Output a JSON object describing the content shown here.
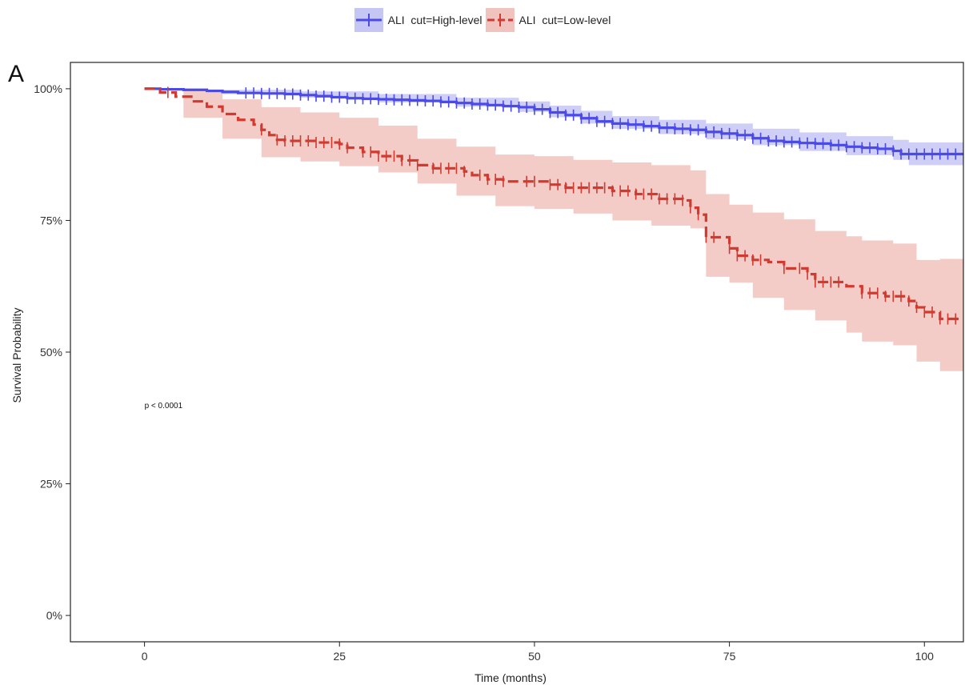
{
  "panel_letter": "A",
  "chart_data": {
    "type": "line",
    "subtype": "kaplan-meier",
    "title": "",
    "xlabel": "Time (months)",
    "ylabel": "Survival Probability",
    "xlim": [
      -9.5,
      105
    ],
    "ylim": [
      -0.05,
      1.05
    ],
    "x_ticks": [
      0,
      25,
      50,
      75,
      100
    ],
    "x_tick_labels": [
      "0",
      "25",
      "50",
      "75",
      "100"
    ],
    "y_ticks": [
      0,
      0.25,
      0.5,
      0.75,
      1.0
    ],
    "y_tick_labels": [
      "0%",
      "25%",
      "50%",
      "75%",
      "100%"
    ],
    "grid": false,
    "legend_position": "top",
    "annotation": "p < 0.0001",
    "annotation_x": 0,
    "annotation_y": 0.4,
    "series": [
      {
        "name": "ALI  cut=High-level",
        "color": "#4a4ae8",
        "band_color": "#c6c6f5",
        "line_style": "solid",
        "steps": [
          [
            0,
            1.0
          ],
          [
            2,
            0.999
          ],
          [
            5,
            0.998
          ],
          [
            8,
            0.996
          ],
          [
            10,
            0.994
          ],
          [
            12,
            0.992
          ],
          [
            15,
            0.991
          ],
          [
            18,
            0.99
          ],
          [
            20,
            0.988
          ],
          [
            22,
            0.986
          ],
          [
            24,
            0.984
          ],
          [
            26,
            0.982
          ],
          [
            28,
            0.981
          ],
          [
            30,
            0.98
          ],
          [
            32,
            0.979
          ],
          [
            34,
            0.978
          ],
          [
            36,
            0.977
          ],
          [
            38,
            0.975
          ],
          [
            40,
            0.973
          ],
          [
            42,
            0.971
          ],
          [
            44,
            0.969
          ],
          [
            46,
            0.967
          ],
          [
            48,
            0.965
          ],
          [
            50,
            0.961
          ],
          [
            52,
            0.955
          ],
          [
            54,
            0.95
          ],
          [
            56,
            0.944
          ],
          [
            58,
            0.938
          ],
          [
            60,
            0.934
          ],
          [
            62,
            0.932
          ],
          [
            64,
            0.929
          ],
          [
            66,
            0.926
          ],
          [
            68,
            0.924
          ],
          [
            70,
            0.922
          ],
          [
            72,
            0.918
          ],
          [
            74,
            0.915
          ],
          [
            76,
            0.912
          ],
          [
            78,
            0.906
          ],
          [
            80,
            0.901
          ],
          [
            82,
            0.899
          ],
          [
            84,
            0.897
          ],
          [
            86,
            0.896
          ],
          [
            88,
            0.893
          ],
          [
            90,
            0.89
          ],
          [
            92,
            0.888
          ],
          [
            94,
            0.886
          ],
          [
            96,
            0.882
          ],
          [
            97,
            0.876
          ],
          [
            105,
            0.876
          ]
        ],
        "lower": [
          [
            0,
            1.0
          ],
          [
            10,
            0.99
          ],
          [
            20,
            0.983
          ],
          [
            30,
            0.974
          ],
          [
            40,
            0.966
          ],
          [
            48,
            0.956
          ],
          [
            52,
            0.946
          ],
          [
            56,
            0.934
          ],
          [
            60,
            0.924
          ],
          [
            66,
            0.914
          ],
          [
            72,
            0.904
          ],
          [
            78,
            0.893
          ],
          [
            84,
            0.882
          ],
          [
            90,
            0.874
          ],
          [
            96,
            0.865
          ],
          [
            98,
            0.855
          ],
          [
            105,
            0.855
          ]
        ],
        "upper": [
          [
            0,
            1.0
          ],
          [
            10,
            0.998
          ],
          [
            20,
            0.995
          ],
          [
            30,
            0.99
          ],
          [
            40,
            0.983
          ],
          [
            48,
            0.976
          ],
          [
            52,
            0.968
          ],
          [
            56,
            0.958
          ],
          [
            60,
            0.948
          ],
          [
            66,
            0.941
          ],
          [
            72,
            0.934
          ],
          [
            78,
            0.924
          ],
          [
            84,
            0.917
          ],
          [
            90,
            0.91
          ],
          [
            96,
            0.903
          ],
          [
            98,
            0.898
          ],
          [
            105,
            0.898
          ]
        ],
        "censors": [
          13,
          14,
          15,
          16,
          17,
          18,
          19,
          20,
          21,
          22,
          23,
          24,
          25,
          26,
          27,
          28,
          29,
          30,
          31,
          32,
          33,
          34,
          35,
          36,
          37,
          38,
          39,
          40,
          41,
          42,
          43,
          44,
          45,
          46,
          47,
          48,
          49,
          50,
          51,
          52,
          53,
          54,
          55,
          56,
          57,
          58,
          59,
          60,
          61,
          62,
          63,
          64,
          65,
          66,
          67,
          68,
          69,
          70,
          71,
          72,
          73,
          74,
          75,
          76,
          77,
          78,
          79,
          80,
          81,
          82,
          83,
          84,
          85,
          86,
          87,
          88,
          89,
          90,
          91,
          92,
          93,
          94,
          95,
          96,
          97,
          98,
          99,
          100,
          101,
          102,
          103,
          104
        ]
      },
      {
        "name": "ALI  cut=Low-level",
        "color": "#d23a30",
        "band_color": "#f1c3be",
        "line_style": "dashed",
        "steps": [
          [
            0,
            1.0
          ],
          [
            2,
            0.993
          ],
          [
            4,
            0.985
          ],
          [
            6,
            0.976
          ],
          [
            8,
            0.966
          ],
          [
            10,
            0.952
          ],
          [
            12,
            0.941
          ],
          [
            14,
            0.932
          ],
          [
            15,
            0.922
          ],
          [
            16,
            0.912
          ],
          [
            17,
            0.903
          ],
          [
            18,
            0.901
          ],
          [
            22,
            0.898
          ],
          [
            25,
            0.895
          ],
          [
            26,
            0.888
          ],
          [
            28,
            0.88
          ],
          [
            30,
            0.872
          ],
          [
            33,
            0.864
          ],
          [
            35,
            0.855
          ],
          [
            37,
            0.849
          ],
          [
            41,
            0.843
          ],
          [
            42,
            0.836
          ],
          [
            44,
            0.828
          ],
          [
            46,
            0.824
          ],
          [
            52,
            0.818
          ],
          [
            54,
            0.812
          ],
          [
            60,
            0.806
          ],
          [
            63,
            0.8
          ],
          [
            66,
            0.791
          ],
          [
            69,
            0.788
          ],
          [
            70,
            0.774
          ],
          [
            71,
            0.761
          ],
          [
            72,
            0.718
          ],
          [
            75,
            0.697
          ],
          [
            76,
            0.683
          ],
          [
            78,
            0.675
          ],
          [
            80,
            0.671
          ],
          [
            82,
            0.659
          ],
          [
            85,
            0.648
          ],
          [
            86,
            0.633
          ],
          [
            90,
            0.625
          ],
          [
            92,
            0.612
          ],
          [
            95,
            0.606
          ],
          [
            98,
            0.597
          ],
          [
            99,
            0.585
          ],
          [
            100,
            0.576
          ],
          [
            102,
            0.563
          ],
          [
            105,
            0.563
          ]
        ],
        "lower": [
          [
            0,
            1.0
          ],
          [
            5,
            0.945
          ],
          [
            10,
            0.905
          ],
          [
            15,
            0.87
          ],
          [
            20,
            0.862
          ],
          [
            25,
            0.853
          ],
          [
            30,
            0.841
          ],
          [
            35,
            0.82
          ],
          [
            40,
            0.797
          ],
          [
            45,
            0.777
          ],
          [
            50,
            0.772
          ],
          [
            55,
            0.763
          ],
          [
            60,
            0.75
          ],
          [
            65,
            0.74
          ],
          [
            70,
            0.735
          ],
          [
            72,
            0.643
          ],
          [
            75,
            0.632
          ],
          [
            78,
            0.603
          ],
          [
            82,
            0.58
          ],
          [
            86,
            0.56
          ],
          [
            90,
            0.537
          ],
          [
            92,
            0.52
          ],
          [
            96,
            0.513
          ],
          [
            99,
            0.482
          ],
          [
            102,
            0.464
          ],
          [
            105,
            0.464
          ]
        ],
        "upper": [
          [
            0,
            1.0
          ],
          [
            5,
            0.996
          ],
          [
            10,
            0.98
          ],
          [
            15,
            0.965
          ],
          [
            20,
            0.955
          ],
          [
            25,
            0.945
          ],
          [
            30,
            0.93
          ],
          [
            35,
            0.905
          ],
          [
            40,
            0.89
          ],
          [
            45,
            0.875
          ],
          [
            50,
            0.872
          ],
          [
            55,
            0.865
          ],
          [
            60,
            0.86
          ],
          [
            65,
            0.855
          ],
          [
            70,
            0.845
          ],
          [
            72,
            0.8
          ],
          [
            75,
            0.78
          ],
          [
            78,
            0.765
          ],
          [
            82,
            0.752
          ],
          [
            86,
            0.73
          ],
          [
            90,
            0.72
          ],
          [
            92,
            0.712
          ],
          [
            96,
            0.706
          ],
          [
            99,
            0.675
          ],
          [
            102,
            0.677
          ],
          [
            105,
            0.677
          ]
        ],
        "censors": [
          3,
          15,
          17,
          18,
          19,
          20,
          21,
          22,
          23,
          24,
          25,
          26,
          28,
          29,
          30,
          31,
          32,
          33,
          34,
          35,
          37,
          38,
          39,
          40,
          41,
          43,
          44,
          45,
          46,
          49,
          50,
          52,
          53,
          54,
          55,
          56,
          57,
          58,
          59,
          60,
          61,
          62,
          63,
          64,
          65,
          66,
          67,
          68,
          69,
          70,
          71,
          72,
          73,
          75,
          76,
          77,
          78,
          79,
          82,
          84,
          85,
          86,
          87,
          88,
          89,
          92,
          93,
          94,
          95,
          96,
          97,
          98,
          99,
          100,
          101,
          102,
          103,
          104
        ]
      }
    ]
  }
}
